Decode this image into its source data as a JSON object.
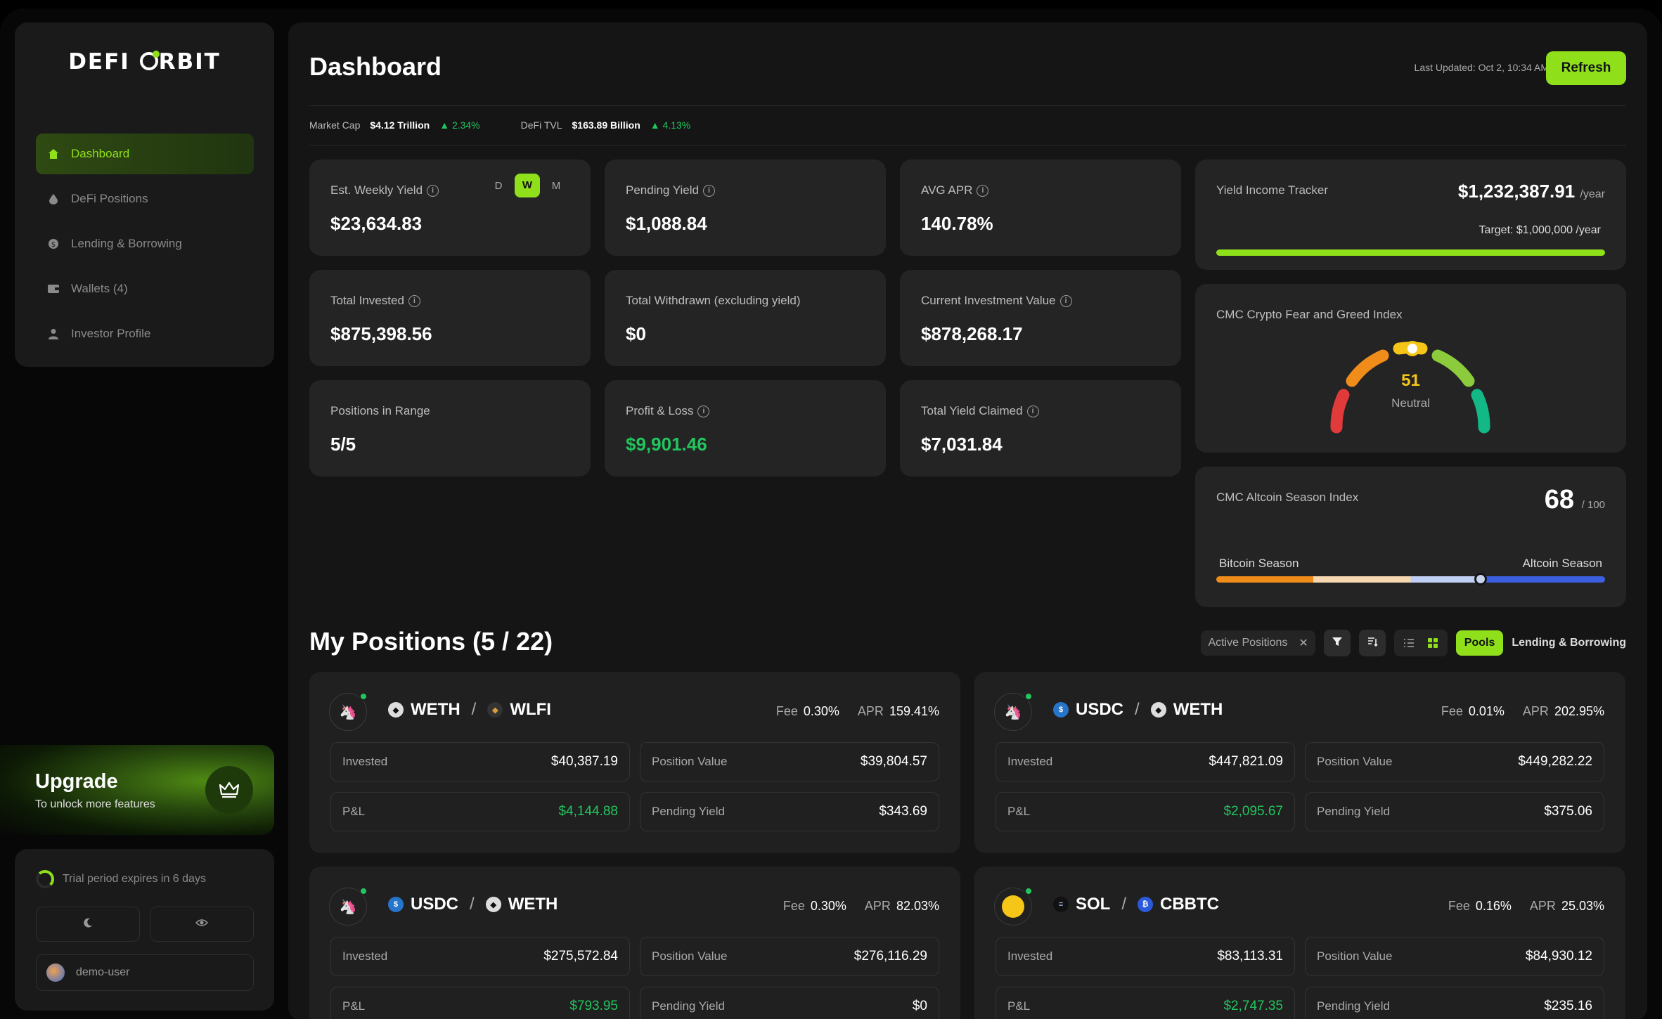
{
  "brand": {
    "logo_left": "DEFI",
    "logo_right": "RBIT"
  },
  "nav": {
    "items": [
      {
        "label": "Dashboard",
        "icon": "home-icon"
      },
      {
        "label": "DeFi Positions",
        "icon": "droplet-icon"
      },
      {
        "label": "Lending & Borrowing",
        "icon": "coin-icon"
      },
      {
        "label": "Wallets (4)",
        "icon": "wallet-icon"
      },
      {
        "label": "Investor Profile",
        "icon": "user-icon"
      }
    ]
  },
  "upgrade": {
    "title": "Upgrade",
    "subtitle": "To unlock more features"
  },
  "trial": {
    "text": "Trial period expires in 6 days"
  },
  "user": {
    "name": "demo-user"
  },
  "header": {
    "title": "Dashboard",
    "last_updated": "Last Updated: Oct 2, 10:34 AM",
    "refresh_label": "Refresh"
  },
  "ticker": {
    "market_cap_label": "Market Cap",
    "market_cap_value": "$4.12 Trillion",
    "market_cap_change": "2.34%",
    "tvl_label": "DeFi TVL",
    "tvl_value": "$163.89 Billion",
    "tvl_change": "4.13%"
  },
  "stats": {
    "weekly_yield": {
      "label": "Est. Weekly Yield",
      "value": "$23,634.83",
      "periods": [
        "D",
        "W",
        "M"
      ],
      "selected": "W"
    },
    "pending_yield": {
      "label": "Pending Yield",
      "value": "$1,088.84"
    },
    "avg_apr": {
      "label": "AVG APR",
      "value": "140.78%"
    },
    "total_invested": {
      "label": "Total Invested",
      "value": "$875,398.56"
    },
    "total_withdrawn": {
      "label": "Total Withdrawn (excluding yield)",
      "value": "$0"
    },
    "current_value": {
      "label": "Current Investment Value",
      "value": "$878,268.17"
    },
    "positions_in_range": {
      "label": "Positions in Range",
      "value": "5/5"
    },
    "profit_loss": {
      "label": "Profit & Loss",
      "value": "$9,901.46"
    },
    "yield_claimed": {
      "label": "Total Yield Claimed",
      "value": "$7,031.84"
    }
  },
  "yield_tracker": {
    "label": "Yield Income Tracker",
    "value": "$1,232,387.91",
    "unit": "/year",
    "target": "Target: $1,000,000 /year",
    "progress": 1.0
  },
  "fear_greed": {
    "label": "CMC Crypto Fear and Greed Index",
    "value": "51",
    "status": "Neutral"
  },
  "altcoin": {
    "label": "CMC Altcoin Season Index",
    "value": "68",
    "max": "/ 100",
    "left_label": "Bitcoin Season",
    "right_label": "Altcoin Season",
    "position": 0.68
  },
  "positions": {
    "title": "My Positions (5 / 22)",
    "filter_chip": "Active Positions",
    "pools_label": "Pools",
    "lending_label": "Lending & Borrowing",
    "cards": [
      {
        "token_a": "WETH",
        "token_b": "WLFI",
        "fee_label": "Fee",
        "fee": "0.30%",
        "apr_label": "APR",
        "apr": "159.41%",
        "invested": "$40,387.19",
        "position_value": "$39,804.57",
        "pnl": "$4,144.88",
        "pending_yield": "$343.69"
      },
      {
        "token_a": "USDC",
        "token_b": "WETH",
        "fee_label": "Fee",
        "fee": "0.01%",
        "apr_label": "APR",
        "apr": "202.95%",
        "invested": "$447,821.09",
        "position_value": "$449,282.22",
        "pnl": "$2,095.67",
        "pending_yield": "$375.06"
      },
      {
        "token_a": "USDC",
        "token_b": "WETH",
        "fee_label": "Fee",
        "fee": "0.30%",
        "apr_label": "APR",
        "apr": "82.03%",
        "invested": "$275,572.84",
        "position_value": "$276,116.29",
        "pnl": "$793.95",
        "pending_yield": "$0"
      },
      {
        "token_a": "SOL",
        "token_b": "CBBTC",
        "fee_label": "Fee",
        "fee": "0.16%",
        "apr_label": "APR",
        "apr": "25.03%",
        "invested": "$83,113.31",
        "position_value": "$84,930.12",
        "pnl": "$2,747.35",
        "pending_yield": "$235.16"
      }
    ],
    "cell_labels": {
      "invested": "Invested",
      "position_value": "Position Value",
      "pnl": "P&L",
      "pending_yield": "Pending Yield"
    }
  },
  "colors": {
    "accent": "#8fe01a",
    "positive": "#22c55e",
    "card": "#242424"
  }
}
